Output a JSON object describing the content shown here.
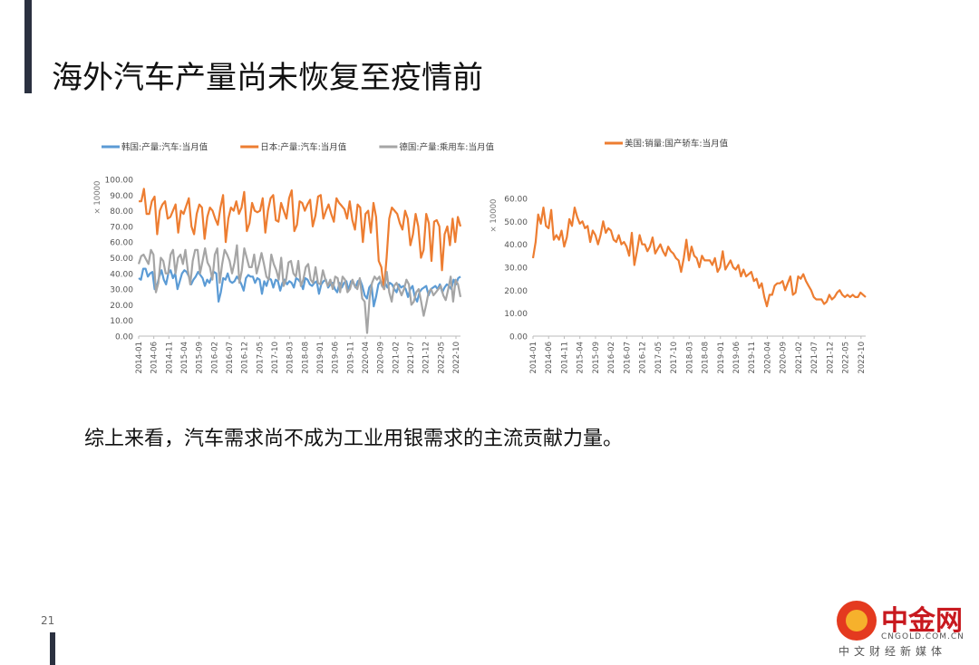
{
  "page": {
    "title": "海外汽车产量尚未恢复至疫情前",
    "summary": "综上来看，汽车需求尚不成为工业用银需求的主流贡献力量。",
    "page_number": "21"
  },
  "watermark": {
    "name": "中金网",
    "url": "CNGOLD.COM.CN",
    "tagline": "中文财经新媒体"
  },
  "chart_data": [
    {
      "type": "line",
      "ylabel": "× 10000",
      "ylim": [
        0,
        100
      ],
      "yticks": [
        "0.00",
        "10.00",
        "20.00",
        "30.00",
        "40.00",
        "50.00",
        "60.00",
        "70.00",
        "80.00",
        "90.00",
        "100.00"
      ],
      "xticks": [
        "2014-01",
        "2014-06",
        "2014-11",
        "2015-04",
        "2015-09",
        "2016-02",
        "2016-07",
        "2016-12",
        "2017-05",
        "2017-10",
        "2018-03",
        "2018-08",
        "2019-01",
        "2019-06",
        "2019-11",
        "2020-04",
        "2020-09",
        "2021-02",
        "2021-07",
        "2021-12",
        "2022-05",
        "2022-10"
      ],
      "legend_position": "top",
      "series": [
        {
          "name": "韩国:产量:汽车:当月值",
          "color": "#5b9bd5",
          "values": [
            37,
            36,
            43,
            43,
            38,
            40,
            41,
            30,
            32,
            38,
            42,
            36,
            33,
            40,
            42,
            37,
            40,
            30,
            35,
            40,
            42,
            41,
            38,
            33,
            36,
            38,
            41,
            39,
            37,
            32,
            36,
            34,
            38,
            41,
            40,
            22,
            28,
            37,
            36,
            40,
            35,
            34,
            35,
            38,
            36,
            33,
            29,
            37,
            39,
            38,
            38,
            34,
            37,
            36,
            27,
            35,
            32,
            37,
            36,
            31,
            36,
            35,
            29,
            34,
            36,
            33,
            35,
            34,
            31,
            37,
            36,
            34,
            30,
            37,
            36,
            33,
            32,
            34,
            35,
            27,
            33,
            35,
            36,
            31,
            33,
            34,
            30,
            28,
            34,
            31,
            34,
            35,
            29,
            35,
            34,
            31,
            35,
            36,
            32,
            26,
            24,
            31,
            33,
            19,
            25,
            33,
            35,
            33,
            34,
            31,
            34,
            33,
            30,
            28,
            33,
            31,
            32,
            30,
            25,
            30,
            32,
            25,
            22,
            28,
            30,
            31,
            32,
            26,
            30,
            31,
            32,
            30,
            33,
            28,
            31,
            33,
            32,
            30,
            36,
            33,
            37,
            38
          ]
        },
        {
          "name": "日本:产量:汽车:当月值",
          "color": "#ed7d31",
          "values": [
            86,
            86,
            94,
            78,
            78,
            86,
            89,
            65,
            80,
            84,
            86,
            75,
            76,
            80,
            84,
            66,
            80,
            78,
            83,
            88,
            70,
            65,
            78,
            84,
            82,
            62,
            76,
            82,
            80,
            75,
            71,
            82,
            90,
            60,
            75,
            82,
            80,
            86,
            78,
            82,
            92,
            67,
            72,
            85,
            80,
            79,
            80,
            88,
            66,
            80,
            88,
            90,
            74,
            73,
            85,
            80,
            75,
            88,
            93,
            67,
            71,
            86,
            85,
            80,
            84,
            87,
            70,
            77,
            89,
            90,
            75,
            80,
            84,
            78,
            73,
            88,
            85,
            83,
            81,
            75,
            86,
            74,
            68,
            84,
            82,
            60,
            78,
            80,
            66,
            85,
            76,
            48,
            44,
            30,
            50,
            75,
            82,
            80,
            78,
            72,
            68,
            80,
            75,
            58,
            65,
            78,
            70,
            50,
            55,
            78,
            72,
            48,
            73,
            74,
            70,
            42,
            65,
            70,
            58,
            75,
            60,
            76,
            70
          ]
        },
        {
          "name": "德国:产量:乘用车:当月值",
          "color": "#a5a5a5",
          "values": [
            46,
            51,
            52,
            49,
            46,
            55,
            52,
            28,
            34,
            50,
            48,
            40,
            40,
            52,
            55,
            40,
            50,
            52,
            46,
            55,
            42,
            33,
            48,
            55,
            55,
            40,
            48,
            56,
            47,
            44,
            36,
            52,
            56,
            34,
            46,
            55,
            52,
            48,
            40,
            47,
            58,
            34,
            42,
            56,
            50,
            44,
            44,
            52,
            40,
            46,
            53,
            46,
            38,
            36,
            52,
            46,
            42,
            36,
            50,
            32,
            36,
            47,
            48,
            40,
            38,
            48,
            32,
            36,
            44,
            46,
            36,
            34,
            44,
            34,
            33,
            42,
            36,
            32,
            36,
            30,
            38,
            37,
            28,
            38,
            36,
            28,
            30,
            36,
            32,
            30,
            37,
            24,
            22,
            2,
            24,
            34,
            38,
            36,
            38,
            32,
            30,
            41,
            28,
            22,
            32,
            34,
            30,
            26,
            30,
            36,
            33,
            20,
            22,
            28,
            30,
            22,
            13,
            20,
            28,
            30,
            26,
            28,
            30,
            32,
            26,
            23,
            30,
            38,
            22,
            36,
            33,
            25
          ]
        }
      ]
    },
    {
      "type": "line",
      "ylabel": "× 10000",
      "ylim": [
        0,
        60
      ],
      "yticks": [
        "0.00",
        "10.00",
        "20.00",
        "30.00",
        "40.00",
        "50.00",
        "60.00"
      ],
      "xticks": [
        "2014-01",
        "2014-06",
        "2014-11",
        "2015-04",
        "2015-09",
        "2016-02",
        "2016-07",
        "2016-12",
        "2017-05",
        "2017-10",
        "2018-03",
        "2018-08",
        "2019-01",
        "2019-06",
        "2019-11",
        "2020-04",
        "2020-09",
        "2021-02",
        "2021-07",
        "2021-12",
        "2022-05",
        "2022-10"
      ],
      "legend_position": "top",
      "series": [
        {
          "name": "美国:销量:国产轿车:当月值",
          "color": "#ed7d31",
          "values": [
            34,
            41,
            53,
            49,
            56,
            48,
            47,
            55,
            42,
            44,
            42,
            46,
            39,
            43,
            51,
            48,
            56,
            52,
            49,
            50,
            47,
            48,
            41,
            46,
            44,
            40,
            44,
            50,
            45,
            47,
            46,
            42,
            41,
            44,
            40,
            41,
            39,
            35,
            45,
            31,
            37,
            44,
            40,
            40,
            37,
            39,
            43,
            36,
            38,
            40,
            37,
            35,
            39,
            37,
            36,
            34,
            33,
            28,
            34,
            42,
            33,
            39,
            35,
            34,
            30,
            35,
            33,
            33,
            33,
            31,
            34,
            28,
            30,
            37,
            29,
            31,
            33,
            30,
            29,
            31,
            26,
            29,
            26,
            27,
            28,
            24,
            25,
            21,
            23,
            17,
            13,
            18,
            18,
            22,
            23,
            23,
            24,
            20,
            23,
            26,
            18,
            19,
            26,
            25,
            27,
            24,
            22,
            20,
            17,
            16,
            16,
            16,
            14,
            15,
            18,
            16,
            17,
            19,
            20,
            18,
            17,
            18,
            17,
            18,
            17,
            17,
            19,
            18,
            17
          ]
        }
      ]
    }
  ]
}
